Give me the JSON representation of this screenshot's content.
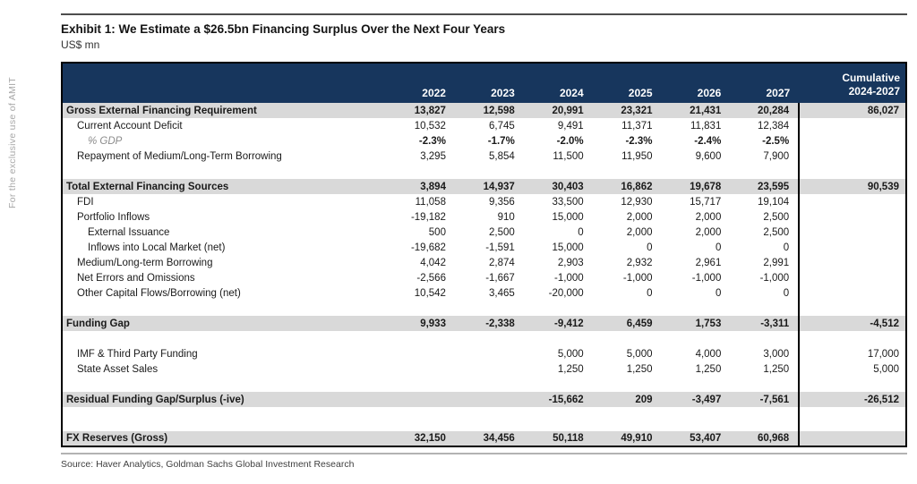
{
  "watermark": "For the exclusive use of AMIT",
  "title": "Exhibit 1: We Estimate a $26.5bn Financing Surplus Over the Next Four Years",
  "subtitle": "US$ mn",
  "source": "Source: Haver Analytics, Goldman Sachs Global Investment Research",
  "colors": {
    "header_bg": "#17365d",
    "section_row_bg": "#d9d9d9"
  },
  "table": {
    "years": [
      "2022",
      "2023",
      "2024",
      "2025",
      "2026",
      "2027"
    ],
    "cumulative_header": [
      "Cumulative",
      "2024-2027"
    ],
    "rows": [
      {
        "label": "Gross External Financing Requirement",
        "indent": 0,
        "style": "section",
        "values": [
          "13,827",
          "12,598",
          "20,991",
          "23,321",
          "21,431",
          "20,284"
        ],
        "cumulative": "86,027"
      },
      {
        "label": "Current Account Deficit",
        "indent": 1,
        "style": "normal",
        "values": [
          "10,532",
          "6,745",
          "9,491",
          "11,371",
          "11,831",
          "12,384"
        ],
        "cumulative": ""
      },
      {
        "label": "% GDP",
        "indent": 2,
        "style": "gdp",
        "values": [
          "-2.3%",
          "-1.7%",
          "-2.0%",
          "-2.3%",
          "-2.4%",
          "-2.5%"
        ],
        "cumulative": ""
      },
      {
        "label": "Repayment of Medium/Long-Term Borrowing",
        "indent": 1,
        "style": "normal",
        "values": [
          "3,295",
          "5,854",
          "11,500",
          "11,950",
          "9,600",
          "7,900"
        ],
        "cumulative": ""
      },
      {
        "style": "blank"
      },
      {
        "label": "Total External Financing Sources",
        "indent": 0,
        "style": "section",
        "values": [
          "3,894",
          "14,937",
          "30,403",
          "16,862",
          "19,678",
          "23,595"
        ],
        "cumulative": "90,539"
      },
      {
        "label": "FDI",
        "indent": 1,
        "style": "normal",
        "values": [
          "11,058",
          "9,356",
          "33,500",
          "12,930",
          "15,717",
          "19,104"
        ],
        "cumulative": ""
      },
      {
        "label": "Portfolio Inflows",
        "indent": 1,
        "style": "normal",
        "values": [
          "-19,182",
          "910",
          "15,000",
          "2,000",
          "2,000",
          "2,500"
        ],
        "cumulative": ""
      },
      {
        "label": "External Issuance",
        "indent": 2,
        "style": "normal",
        "values": [
          "500",
          "2,500",
          "0",
          "2,000",
          "2,000",
          "2,500"
        ],
        "cumulative": ""
      },
      {
        "label": "Inflows into Local Market (net)",
        "indent": 2,
        "style": "normal",
        "values": [
          "-19,682",
          "-1,591",
          "15,000",
          "0",
          "0",
          "0"
        ],
        "cumulative": ""
      },
      {
        "label": "Medium/Long-term Borrowing",
        "indent": 1,
        "style": "normal",
        "values": [
          "4,042",
          "2,874",
          "2,903",
          "2,932",
          "2,961",
          "2,991"
        ],
        "cumulative": ""
      },
      {
        "label": "Net Errors and Omissions",
        "indent": 1,
        "style": "normal",
        "values": [
          "-2,566",
          "-1,667",
          "-1,000",
          "-1,000",
          "-1,000",
          "-1,000"
        ],
        "cumulative": ""
      },
      {
        "label": "Other Capital Flows/Borrowing (net)",
        "indent": 1,
        "style": "normal",
        "values": [
          "10,542",
          "3,465",
          "-20,000",
          "0",
          "0",
          "0"
        ],
        "cumulative": ""
      },
      {
        "style": "blank"
      },
      {
        "label": "Funding Gap",
        "indent": 0,
        "style": "section",
        "values": [
          "9,933",
          "-2,338",
          "-9,412",
          "6,459",
          "1,753",
          "-3,311"
        ],
        "cumulative": "-4,512"
      },
      {
        "style": "blank"
      },
      {
        "label": "IMF & Third Party Funding",
        "indent": 1,
        "style": "normal",
        "values": [
          "",
          "",
          "5,000",
          "5,000",
          "4,000",
          "3,000"
        ],
        "cumulative": "17,000"
      },
      {
        "label": "State Asset Sales",
        "indent": 1,
        "style": "normal",
        "values": [
          "",
          "",
          "1,250",
          "1,250",
          "1,250",
          "1,250"
        ],
        "cumulative": "5,000"
      },
      {
        "style": "blank"
      },
      {
        "label": "Residual Funding Gap/Surplus (-ive)",
        "indent": 0,
        "style": "section",
        "values": [
          "",
          "",
          "-15,662",
          "209",
          "-3,497",
          "-7,561"
        ],
        "cumulative": "-26,512"
      },
      {
        "style": "blank-lg"
      },
      {
        "label": "FX Reserves (Gross)",
        "indent": 0,
        "style": "section",
        "values": [
          "32,150",
          "34,456",
          "50,118",
          "49,910",
          "53,407",
          "60,968"
        ],
        "cumulative": ""
      }
    ]
  }
}
